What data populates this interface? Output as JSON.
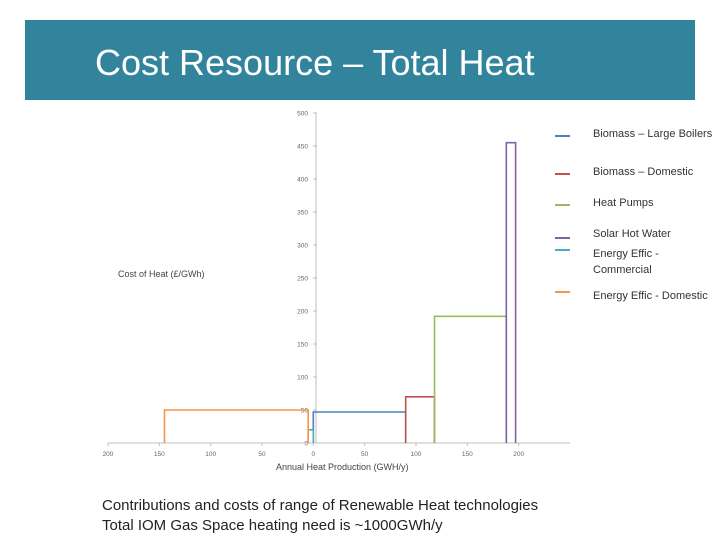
{
  "slide": {
    "title": "Cost Resource – Total Heat",
    "caption_line1": "Contributions and costs of range of Renewable Heat technologies",
    "caption_line2": "Total IOM Gas Space heating need is ~1000GWh/y"
  },
  "colors": {
    "title_bar": "#31849b",
    "axis": "#bfbfbf"
  },
  "chart_data": {
    "type": "line",
    "title": "",
    "xlabel": "Annual Heat Production (GWH/y)",
    "ylabel": "Cost of Heat (£/GWh)",
    "xlim": [
      -200,
      250
    ],
    "ylim": [
      0,
      500
    ],
    "x_ticks": [
      -200,
      -150,
      -100,
      -50,
      0,
      50,
      100,
      150,
      200
    ],
    "x_tick_labels": [
      "200",
      "150",
      "100",
      "50",
      "0",
      "50",
      "100",
      "150",
      "200"
    ],
    "y_ticks": [
      0,
      50,
      100,
      150,
      200,
      250,
      300,
      350,
      400,
      450,
      500
    ],
    "legend_position": "right",
    "series": [
      {
        "name": "Biomass – Large Boilers",
        "color": "#4f81bd",
        "points": [
          [
            0,
            0
          ],
          [
            0,
            47
          ],
          [
            90,
            47
          ],
          [
            90,
            0
          ]
        ]
      },
      {
        "name": "Biomass – Domestic",
        "color": "#c0504d",
        "points": [
          [
            90,
            0
          ],
          [
            90,
            70
          ],
          [
            118,
            70
          ],
          [
            118,
            0
          ]
        ]
      },
      {
        "name": "Heat Pumps",
        "color": "#9bbb59",
        "points": [
          [
            118,
            0
          ],
          [
            118,
            192
          ],
          [
            188,
            192
          ],
          [
            188,
            0
          ]
        ]
      },
      {
        "name": "Solar Hot Water",
        "color": "#8064a2",
        "points": [
          [
            188,
            0
          ],
          [
            188,
            455
          ],
          [
            197,
            455
          ],
          [
            197,
            0
          ]
        ]
      },
      {
        "name": "Energy Effic - Commercial",
        "color": "#4bacc6",
        "points": [
          [
            -5,
            0
          ],
          [
            -5,
            20
          ],
          [
            0,
            20
          ],
          [
            0,
            0
          ]
        ]
      },
      {
        "name": "Energy Effic - Domestic",
        "color": "#f79646",
        "points": [
          [
            -145,
            0
          ],
          [
            -145,
            50
          ],
          [
            -5,
            50
          ],
          [
            -5,
            0
          ]
        ]
      }
    ]
  }
}
